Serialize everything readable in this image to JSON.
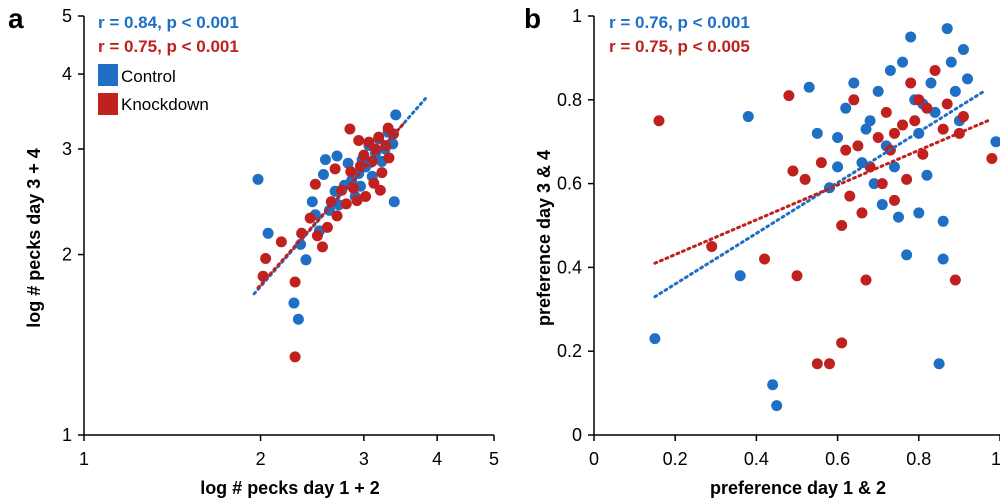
{
  "chart_data": [
    {
      "type": "scatter",
      "panel_label": "a",
      "xlabel": "log # pecks day 1 + 2",
      "ylabel": "log # pecks day 3 + 4",
      "xscale": "log",
      "yscale": "log",
      "xlim": [
        1,
        5
      ],
      "ylim": [
        1,
        5
      ],
      "xticks": [
        1,
        2,
        3,
        4,
        5
      ],
      "yticks": [
        1,
        2,
        3,
        4,
        5
      ],
      "grid": false,
      "legend": {
        "placement": "top-left",
        "entries": [
          "Control",
          "Knockdown"
        ]
      },
      "annotations": [
        {
          "text": "r = 0.84, p < 0.001",
          "color": "#1f6fc4"
        },
        {
          "text": "r = 0.75, p < 0.001",
          "color": "#c0201e"
        }
      ],
      "series": [
        {
          "name": "Control",
          "color": "#1f6fc4",
          "points": [
            [
              1.98,
              2.67
            ],
            [
              2.06,
              2.17
            ],
            [
              2.28,
              1.66
            ],
            [
              2.32,
              1.56
            ],
            [
              2.34,
              2.08
            ],
            [
              2.39,
              1.96
            ],
            [
              2.45,
              2.45
            ],
            [
              2.52,
              2.19
            ],
            [
              2.56,
              2.72
            ],
            [
              2.58,
              2.88
            ],
            [
              2.62,
              2.37
            ],
            [
              2.68,
              2.55
            ],
            [
              2.72,
              2.42
            ],
            [
              2.78,
              2.61
            ],
            [
              2.82,
              2.84
            ],
            [
              2.86,
              2.66
            ],
            [
              2.9,
              2.5
            ],
            [
              2.94,
              2.73
            ],
            [
              2.98,
              2.88
            ],
            [
              3.02,
              2.8
            ],
            [
              3.06,
              3.04
            ],
            [
              3.1,
              2.7
            ],
            [
              3.14,
              2.95
            ],
            [
              3.18,
              3.12
            ],
            [
              3.22,
              2.86
            ],
            [
              3.26,
              3.0
            ],
            [
              3.3,
              3.2
            ],
            [
              3.36,
              3.06
            ],
            [
              3.4,
              3.42
            ],
            [
              3.38,
              2.45
            ],
            [
              2.48,
              2.33
            ],
            [
              2.7,
              2.92
            ],
            [
              2.96,
              2.6
            ],
            [
              3.08,
              2.85
            ]
          ],
          "trendline": {
            "from": [
              1.95,
              1.72
            ],
            "to": [
              3.82,
              3.64
            ]
          }
        },
        {
          "name": "Knockdown",
          "color": "#c0201e",
          "points": [
            [
              2.29,
              1.35
            ],
            [
              2.29,
              1.8
            ],
            [
              2.02,
              1.84
            ],
            [
              2.04,
              1.97
            ],
            [
              2.17,
              2.1
            ],
            [
              2.35,
              2.17
            ],
            [
              2.43,
              2.3
            ],
            [
              2.5,
              2.15
            ],
            [
              2.55,
              2.06
            ],
            [
              2.6,
              2.22
            ],
            [
              2.64,
              2.45
            ],
            [
              2.7,
              2.32
            ],
            [
              2.75,
              2.56
            ],
            [
              2.8,
              2.43
            ],
            [
              2.85,
              2.75
            ],
            [
              2.88,
              2.58
            ],
            [
              2.92,
              2.46
            ],
            [
              2.96,
              2.81
            ],
            [
              3.0,
              2.93
            ],
            [
              3.02,
              2.5
            ],
            [
              3.06,
              3.08
            ],
            [
              3.1,
              2.86
            ],
            [
              3.14,
              3.0
            ],
            [
              3.18,
              3.14
            ],
            [
              3.22,
              2.74
            ],
            [
              3.27,
              3.04
            ],
            [
              3.31,
              2.9
            ],
            [
              3.37,
              3.18
            ],
            [
              3.3,
              3.25
            ],
            [
              2.84,
              3.24
            ],
            [
              3.2,
              2.56
            ],
            [
              2.48,
              2.62
            ],
            [
              2.68,
              2.78
            ],
            [
              3.12,
              2.63
            ],
            [
              2.94,
              3.1
            ]
          ],
          "trendline": {
            "from": [
              1.98,
              1.76
            ],
            "to": [
              3.5,
              3.3
            ]
          }
        }
      ]
    },
    {
      "type": "scatter",
      "panel_label": "b",
      "xlabel": "preference day 1 & 2",
      "ylabel": "preference day 3 & 4",
      "xlim": [
        0,
        1
      ],
      "ylim": [
        0,
        1
      ],
      "xticks": [
        0,
        0.2,
        0.4,
        0.6,
        0.8,
        1
      ],
      "yticks": [
        0,
        0.2,
        0.4,
        0.6,
        0.8,
        1
      ],
      "grid": false,
      "annotations": [
        {
          "text": "r = 0.76, p < 0.001",
          "color": "#1f6fc4"
        },
        {
          "text": "r = 0.75, p < 0.005",
          "color": "#c0201e"
        }
      ],
      "series": [
        {
          "name": "Control",
          "color": "#1f6fc4",
          "points": [
            [
              0.15,
              0.23
            ],
            [
              0.36,
              0.38
            ],
            [
              0.38,
              0.76
            ],
            [
              0.44,
              0.12
            ],
            [
              0.45,
              0.07
            ],
            [
              0.53,
              0.83
            ],
            [
              0.55,
              0.72
            ],
            [
              0.58,
              0.59
            ],
            [
              0.6,
              0.71
            ],
            [
              0.62,
              0.78
            ],
            [
              0.64,
              0.84
            ],
            [
              0.66,
              0.65
            ],
            [
              0.67,
              0.73
            ],
            [
              0.68,
              0.75
            ],
            [
              0.7,
              0.82
            ],
            [
              0.71,
              0.55
            ],
            [
              0.72,
              0.69
            ],
            [
              0.73,
              0.87
            ],
            [
              0.74,
              0.64
            ],
            [
              0.75,
              0.52
            ],
            [
              0.76,
              0.89
            ],
            [
              0.77,
              0.43
            ],
            [
              0.78,
              0.95
            ],
            [
              0.79,
              0.8
            ],
            [
              0.8,
              0.72
            ],
            [
              0.81,
              0.79
            ],
            [
              0.82,
              0.62
            ],
            [
              0.83,
              0.84
            ],
            [
              0.84,
              0.77
            ],
            [
              0.85,
              0.17
            ],
            [
              0.86,
              0.51
            ],
            [
              0.86,
              0.42
            ],
            [
              0.87,
              0.97
            ],
            [
              0.88,
              0.89
            ],
            [
              0.89,
              0.82
            ],
            [
              0.9,
              0.75
            ],
            [
              0.91,
              0.92
            ],
            [
              0.92,
              0.85
            ],
            [
              0.99,
              0.7
            ],
            [
              0.6,
              0.64
            ],
            [
              0.69,
              0.6
            ],
            [
              0.8,
              0.53
            ]
          ],
          "trendline": {
            "from": [
              0.15,
              0.33
            ],
            "to": [
              0.96,
              0.82
            ]
          }
        },
        {
          "name": "Knockdown",
          "color": "#c0201e",
          "points": [
            [
              0.16,
              0.75
            ],
            [
              0.29,
              0.45
            ],
            [
              0.42,
              0.42
            ],
            [
              0.48,
              0.81
            ],
            [
              0.49,
              0.63
            ],
            [
              0.5,
              0.38
            ],
            [
              0.52,
              0.61
            ],
            [
              0.55,
              0.17
            ],
            [
              0.56,
              0.65
            ],
            [
              0.58,
              0.17
            ],
            [
              0.61,
              0.22
            ],
            [
              0.61,
              0.5
            ],
            [
              0.63,
              0.57
            ],
            [
              0.64,
              0.8
            ],
            [
              0.65,
              0.69
            ],
            [
              0.66,
              0.53
            ],
            [
              0.67,
              0.37
            ],
            [
              0.68,
              0.64
            ],
            [
              0.7,
              0.71
            ],
            [
              0.71,
              0.6
            ],
            [
              0.72,
              0.77
            ],
            [
              0.73,
              0.68
            ],
            [
              0.74,
              0.56
            ],
            [
              0.76,
              0.74
            ],
            [
              0.77,
              0.61
            ],
            [
              0.78,
              0.84
            ],
            [
              0.79,
              0.75
            ],
            [
              0.8,
              0.8
            ],
            [
              0.81,
              0.67
            ],
            [
              0.82,
              0.78
            ],
            [
              0.84,
              0.87
            ],
            [
              0.86,
              0.73
            ],
            [
              0.87,
              0.79
            ],
            [
              0.89,
              0.37
            ],
            [
              0.9,
              0.72
            ],
            [
              0.91,
              0.76
            ],
            [
              0.98,
              0.66
            ],
            [
              0.62,
              0.68
            ],
            [
              0.74,
              0.72
            ]
          ],
          "trendline": {
            "from": [
              0.15,
              0.41
            ],
            "to": [
              0.97,
              0.75
            ]
          }
        }
      ]
    }
  ]
}
